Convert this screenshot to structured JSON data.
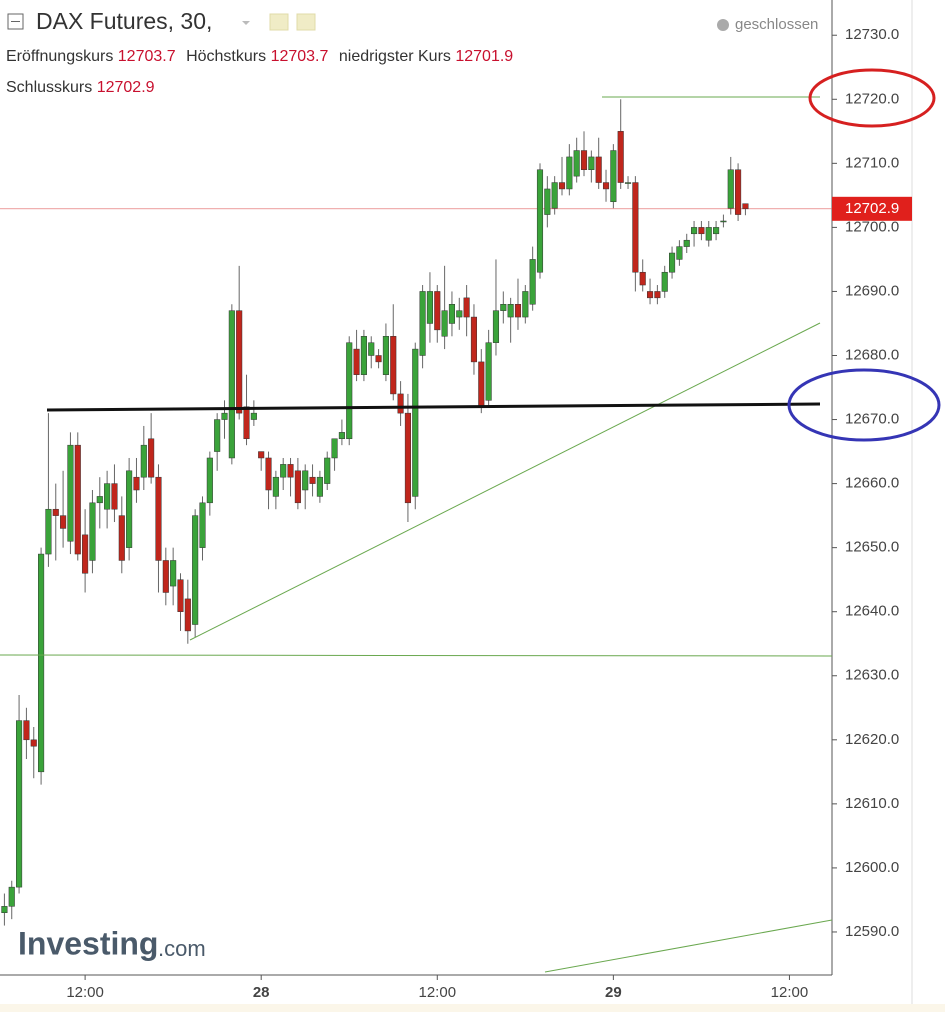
{
  "chart_data": {
    "type": "candlestick",
    "title": "DAX Futures, 30,",
    "status": "geschlossen",
    "logo": "Investing",
    "logo_suffix": ".com",
    "header_labels": [
      "Eröffnungskurs",
      "Höchstkurs",
      "niedrigster Kurs",
      "Schlusskurs"
    ],
    "up_color": "#3aa33a",
    "down_color": "#c0261c",
    "xlim": [
      6.2,
      62.9
    ],
    "xticks": [
      {
        "value": 12,
        "label": "12:00"
      },
      {
        "value": 24,
        "label": "28"
      },
      {
        "value": 36,
        "label": "12:00"
      },
      {
        "value": 48,
        "label": "29"
      },
      {
        "value": 60,
        "label": "12:00"
      }
    ],
    "ylim": [
      12583.75,
      12735.5
    ],
    "yticks": [
      {
        "value": 12590,
        "label": "12590.0"
      },
      {
        "value": 12600,
        "label": "12600.0"
      },
      {
        "value": 12610,
        "label": "12610.0"
      },
      {
        "value": 12620,
        "label": "12620.0"
      },
      {
        "value": 12630,
        "label": "12630.0"
      },
      {
        "value": 12640,
        "label": "12640.0"
      },
      {
        "value": 12650,
        "label": "12650.0"
      },
      {
        "value": 12660,
        "label": "12660.0"
      },
      {
        "value": 12670,
        "label": "12670.0"
      },
      {
        "value": 12680,
        "label": "12680.0"
      },
      {
        "value": 12690,
        "label": "12690.0"
      },
      {
        "value": 12700,
        "label": "12700.0"
      },
      {
        "value": 12710,
        "label": "12710.0"
      },
      {
        "value": 12720,
        "label": "12720.0"
      },
      {
        "value": 12730,
        "label": "12730.0"
      }
    ],
    "x": [
      6.5,
      7,
      7.5,
      8,
      8.5,
      9,
      9.5,
      10,
      10.5,
      11,
      11.5,
      12,
      12.5,
      13,
      13.5,
      14,
      14.5,
      15,
      15.5,
      16,
      16.5,
      17,
      17.5,
      18,
      18.5,
      19,
      19.5,
      20,
      20.5,
      21,
      21.5,
      22,
      22.5,
      23,
      23.5,
      24,
      24.5,
      25,
      25.5,
      26,
      26.5,
      27,
      27.5,
      28,
      28.5,
      29,
      29.5,
      30,
      30.5,
      31,
      31.5,
      32,
      32.5,
      33,
      33.5,
      34,
      34.5,
      35,
      35.5,
      36,
      36.5,
      37,
      37.5,
      38,
      38.5,
      39,
      39.5,
      40,
      40.5,
      41,
      41.5,
      42,
      42.5,
      43,
      43.5,
      44,
      44.5,
      45,
      45.5,
      46,
      46.5,
      47,
      47.5,
      48,
      48.5,
      49,
      49.5,
      50,
      50.5,
      51,
      51.5,
      52,
      52.5,
      53,
      53.5,
      54,
      54.5,
      55,
      55.5,
      56,
      56.5,
      57
    ],
    "open": [
      12593,
      12594,
      12597,
      12623,
      12620,
      12615,
      12649,
      12656,
      12655,
      12651,
      12666,
      12652,
      12648,
      12657,
      12656,
      12660,
      12655,
      12650,
      12661,
      12661,
      12667,
      12661,
      12648,
      12644,
      12645,
      12642,
      12638,
      12650,
      12657,
      12665,
      12670,
      12664,
      12687,
      12672,
      12670,
      12665,
      12664,
      12658,
      12661,
      12663,
      12662,
      12659,
      12661,
      12658,
      12660,
      12664,
      12667,
      12667,
      12681,
      12677,
      12680,
      12680,
      12677,
      12683,
      12674,
      12671,
      12658,
      12680,
      12685,
      12690,
      12683,
      12685,
      12686,
      12689,
      12686,
      12679,
      12673,
      12682,
      12687,
      12686,
      12688,
      12686,
      12688,
      12693,
      12702,
      12703,
      12707,
      12706,
      12708,
      12712,
      12709,
      12711,
      12707,
      12704,
      12715,
      12707,
      12707,
      12693,
      12690,
      12690,
      12690,
      12693,
      12695,
      12697,
      12699,
      12700,
      12698,
      12699,
      12701,
      12703,
      12709,
      12703.7
    ],
    "high": [
      12596,
      12598,
      12627,
      12625,
      12622,
      12650,
      12671,
      12660,
      12662,
      12668,
      12668,
      12656,
      12659,
      12661,
      12662,
      12663,
      12658,
      12664,
      12664,
      12669,
      12671,
      12663,
      12650,
      12650,
      12646,
      12645,
      12656,
      12658,
      12665,
      12671,
      12673,
      12688,
      12694,
      12677,
      12673,
      12665,
      12665,
      12662,
      12664,
      12664,
      12664,
      12663,
      12663,
      12662,
      12665,
      12667,
      12670,
      12683,
      12684,
      12684,
      12683,
      12681,
      12685,
      12688,
      12676,
      12674,
      12682,
      12691,
      12693,
      12691,
      12694,
      12690,
      12689,
      12691,
      12688,
      12681,
      12684,
      12695,
      12690,
      12689,
      12692,
      12691,
      12697,
      12710,
      12708,
      12708,
      12711,
      12713,
      12714,
      12715,
      12712,
      12714,
      12709,
      12713,
      12720,
      12708,
      12708,
      12695,
      12692,
      12691,
      12694,
      12697,
      12698,
      12699,
      12701,
      12701,
      12701,
      12701,
      12702,
      12711,
      12710,
      12703.7
    ],
    "low": [
      12591,
      12592,
      12596,
      12617,
      12614,
      12613,
      12647,
      12648,
      12650,
      12649,
      12648,
      12643,
      12646,
      12653,
      12653,
      12654,
      12646,
      12648,
      12657,
      12659,
      12660,
      12643,
      12641,
      12641,
      12637,
      12635,
      12636,
      12648,
      12655,
      12662,
      12667,
      12663,
      12670,
      12666,
      12669,
      12662,
      12656,
      12656,
      12659,
      12658,
      12656,
      12656,
      12658,
      12657,
      12659,
      12662,
      12666,
      12666,
      12676,
      12676,
      12678,
      12678,
      12676,
      12673,
      12669,
      12654,
      12656,
      12678,
      12682,
      12682,
      12681,
      12683,
      12684,
      12683,
      12677,
      12671,
      12672,
      12680,
      12685,
      12682,
      12684,
      12685,
      12687,
      12692,
      12700,
      12702,
      12705,
      12705,
      12707,
      12708,
      12707,
      12706,
      12704,
      12703,
      12706,
      12706,
      12690,
      12690,
      12688,
      12688,
      12689,
      12692,
      12694,
      12696,
      12697,
      12698,
      12697,
      12698,
      12700,
      12702,
      12701,
      12701.9
    ],
    "close": [
      12594,
      12597,
      12623,
      12620,
      12619,
      12649,
      12656,
      12655,
      12653,
      12666,
      12649,
      12646,
      12657,
      12658,
      12660,
      12656,
      12648,
      12662,
      12659,
      12666,
      12661,
      12648,
      12643,
      12648,
      12640,
      12637,
      12655,
      12657,
      12664,
      12670,
      12671,
      12687,
      12671,
      12667,
      12671,
      12664,
      12659,
      12661,
      12663,
      12661,
      12657,
      12662,
      12660,
      12661,
      12664,
      12667,
      12668,
      12682,
      12677,
      12683,
      12682,
      12679,
      12683,
      12674,
      12671,
      12657,
      12681,
      12690,
      12690,
      12684,
      12687,
      12688,
      12687,
      12686,
      12679,
      12672,
      12682,
      12687,
      12688,
      12688,
      12686,
      12690,
      12695,
      12709,
      12706,
      12707,
      12706,
      12711,
      12712,
      12709,
      12711,
      12707,
      12706,
      12712,
      12707,
      12707,
      12693,
      12691,
      12689,
      12689,
      12693,
      12696,
      12697,
      12698,
      12700,
      12699,
      12700,
      12700,
      12701,
      12709,
      12702,
      12702.9
    ]
  }
}
